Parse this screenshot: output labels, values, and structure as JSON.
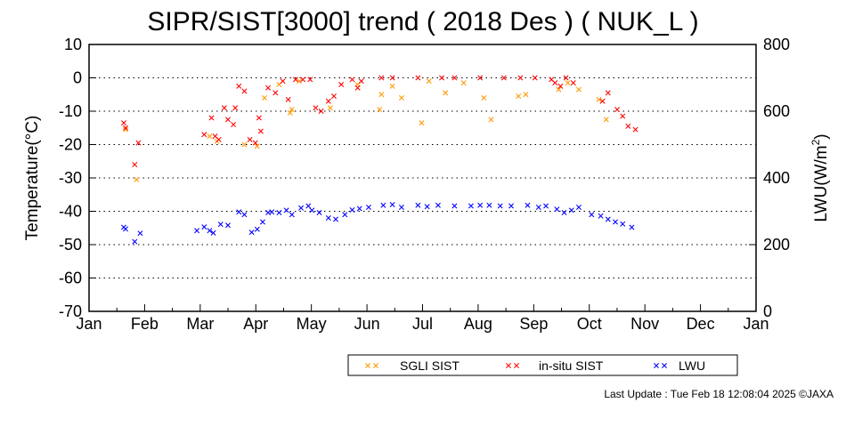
{
  "chart_data": {
    "type": "scatter",
    "title": "SIPR/SIST[3000] trend ( 2018 Des ) ( NUK_L )",
    "ylabel": "Temperature(°C)",
    "y2label_main": "LWU(W/m",
    "y2label_sup": "2",
    "y2label_end": ")",
    "ylim": [
      -70,
      10
    ],
    "y2lim": [
      0,
      800
    ],
    "yticks": [
      10,
      0,
      -10,
      -20,
      -30,
      -40,
      -50,
      -60,
      -70
    ],
    "y2ticks": [
      800,
      600,
      400,
      200,
      0
    ],
    "months": [
      "Jan",
      "Feb",
      "Mar",
      "Apr",
      "May",
      "Jun",
      "Jul",
      "Aug",
      "Sep",
      "Oct",
      "Nov",
      "Dec",
      "Jan"
    ],
    "grid": true,
    "legend_position": "bottom",
    "colors": {
      "sgli": "#ff9900",
      "insitu": "#ff0000",
      "lwu": "#0000ff"
    },
    "series": [
      {
        "name": "SGLI SIST",
        "axis": "left",
        "color": "#ff9900",
        "points": [
          [
            "2018-01-21",
            -15.5
          ],
          [
            "2018-01-27",
            -30.5
          ],
          [
            "2018-03-08",
            -17.5
          ],
          [
            "2018-03-12",
            -19
          ],
          [
            "2018-03-27",
            -20
          ],
          [
            "2018-04-03",
            -20.5
          ],
          [
            "2018-04-07",
            -6
          ],
          [
            "2018-04-15",
            -2
          ],
          [
            "2018-04-21",
            -10.5
          ],
          [
            "2018-04-22",
            -9.5
          ],
          [
            "2018-04-26",
            -1
          ],
          [
            "2018-05-13",
            -9
          ],
          [
            "2018-05-28",
            -2
          ],
          [
            "2018-06-09",
            -9.5
          ],
          [
            "2018-06-10",
            -5
          ],
          [
            "2018-06-16",
            -2.5
          ],
          [
            "2018-06-21",
            -6
          ],
          [
            "2018-07-02",
            -13.5
          ],
          [
            "2018-07-06",
            -1
          ],
          [
            "2018-07-15",
            -4.5
          ],
          [
            "2018-07-25",
            -1.5
          ],
          [
            "2018-08-05",
            -6
          ],
          [
            "2018-08-09",
            -12.5
          ],
          [
            "2018-08-24",
            -5.5
          ],
          [
            "2018-08-28",
            -5
          ],
          [
            "2018-09-15",
            -3.5
          ],
          [
            "2018-09-20",
            -1.5
          ],
          [
            "2018-09-26",
            -3.5
          ],
          [
            "2018-10-07",
            -6.5
          ],
          [
            "2018-10-11",
            -12.5
          ]
        ]
      },
      {
        "name": "in-situ SIST",
        "axis": "left",
        "color": "#ff0000",
        "points": [
          [
            "2018-01-20",
            -13.5
          ],
          [
            "2018-01-21",
            -15
          ],
          [
            "2018-01-26",
            -26
          ],
          [
            "2018-01-28",
            -19.5
          ],
          [
            "2018-03-05",
            -17
          ],
          [
            "2018-03-09",
            -12
          ],
          [
            "2018-03-11",
            -17.5
          ],
          [
            "2018-03-13",
            -18.5
          ],
          [
            "2018-03-16",
            -9
          ],
          [
            "2018-03-18",
            -12.5
          ],
          [
            "2018-03-21",
            -14
          ],
          [
            "2018-03-22",
            -9
          ],
          [
            "2018-03-24",
            -2.5
          ],
          [
            "2018-03-27",
            -4
          ],
          [
            "2018-03-30",
            -18.5
          ],
          [
            "2018-04-02",
            -19.5
          ],
          [
            "2018-04-04",
            -12
          ],
          [
            "2018-04-05",
            -16
          ],
          [
            "2018-04-09",
            -3
          ],
          [
            "2018-04-13",
            -4.5
          ],
          [
            "2018-04-17",
            -1
          ],
          [
            "2018-04-20",
            -6.5
          ],
          [
            "2018-04-24",
            -0.5
          ],
          [
            "2018-04-28",
            -0.5
          ],
          [
            "2018-05-02",
            -0.5
          ],
          [
            "2018-05-05",
            -9
          ],
          [
            "2018-05-08",
            -10
          ],
          [
            "2018-05-12",
            -7
          ],
          [
            "2018-05-15",
            -5.5
          ],
          [
            "2018-05-19",
            -2
          ],
          [
            "2018-05-25",
            -0.5
          ],
          [
            "2018-05-28",
            -3
          ],
          [
            "2018-05-30",
            -1
          ],
          [
            "2018-06-10",
            0
          ],
          [
            "2018-06-16",
            0
          ],
          [
            "2018-06-30",
            0
          ],
          [
            "2018-07-13",
            0
          ],
          [
            "2018-07-20",
            0
          ],
          [
            "2018-08-03",
            0
          ],
          [
            "2018-08-16",
            0
          ],
          [
            "2018-08-25",
            0
          ],
          [
            "2018-09-02",
            0
          ],
          [
            "2018-09-11",
            -0.5
          ],
          [
            "2018-09-13",
            -1.5
          ],
          [
            "2018-09-16",
            -2.5
          ],
          [
            "2018-09-19",
            0
          ],
          [
            "2018-09-23",
            -1.5
          ],
          [
            "2018-10-09",
            -7
          ],
          [
            "2018-10-12",
            -4.5
          ],
          [
            "2018-10-17",
            -9.5
          ],
          [
            "2018-10-20",
            -11.5
          ],
          [
            "2018-10-23",
            -14.5
          ],
          [
            "2018-10-27",
            -15.5
          ]
        ]
      },
      {
        "name": "LWU",
        "axis": "right",
        "color": "#0000ff",
        "points": [
          [
            "2018-01-20",
            252
          ],
          [
            "2018-01-21",
            247
          ],
          [
            "2018-01-26",
            209
          ],
          [
            "2018-01-29",
            234
          ],
          [
            "2018-03-01",
            242
          ],
          [
            "2018-03-05",
            253
          ],
          [
            "2018-03-08",
            242
          ],
          [
            "2018-03-10",
            235
          ],
          [
            "2018-03-14",
            261
          ],
          [
            "2018-03-18",
            258
          ],
          [
            "2018-03-24",
            298
          ],
          [
            "2018-03-27",
            290
          ],
          [
            "2018-03-31",
            237
          ],
          [
            "2018-04-03",
            246
          ],
          [
            "2018-04-06",
            268
          ],
          [
            "2018-04-09",
            296
          ],
          [
            "2018-04-11",
            298
          ],
          [
            "2018-04-15",
            296
          ],
          [
            "2018-04-19",
            303
          ],
          [
            "2018-04-22",
            290
          ],
          [
            "2018-04-27",
            310
          ],
          [
            "2018-05-01",
            316
          ],
          [
            "2018-05-03",
            303
          ],
          [
            "2018-05-07",
            296
          ],
          [
            "2018-05-12",
            280
          ],
          [
            "2018-05-16",
            276
          ],
          [
            "2018-05-21",
            290
          ],
          [
            "2018-05-25",
            304
          ],
          [
            "2018-05-29",
            308
          ],
          [
            "2018-06-03",
            312
          ],
          [
            "2018-06-11",
            318
          ],
          [
            "2018-06-16",
            320
          ],
          [
            "2018-06-21",
            312
          ],
          [
            "2018-06-30",
            318
          ],
          [
            "2018-07-05",
            314
          ],
          [
            "2018-07-11",
            318
          ],
          [
            "2018-07-20",
            316
          ],
          [
            "2018-07-29",
            316
          ],
          [
            "2018-08-03",
            318
          ],
          [
            "2018-08-08",
            318
          ],
          [
            "2018-08-14",
            316
          ],
          [
            "2018-08-20",
            316
          ],
          [
            "2018-08-29",
            318
          ],
          [
            "2018-09-04",
            312
          ],
          [
            "2018-09-08",
            316
          ],
          [
            "2018-09-14",
            306
          ],
          [
            "2018-09-18",
            296
          ],
          [
            "2018-09-22",
            303
          ],
          [
            "2018-09-26",
            312
          ],
          [
            "2018-10-03",
            290
          ],
          [
            "2018-10-08",
            286
          ],
          [
            "2018-10-12",
            276
          ],
          [
            "2018-10-16",
            268
          ],
          [
            "2018-10-20",
            262
          ],
          [
            "2018-10-25",
            252
          ]
        ]
      }
    ],
    "footer": "Last Update : Tue Feb 18 12:08:04 2025  ©JAXA"
  }
}
